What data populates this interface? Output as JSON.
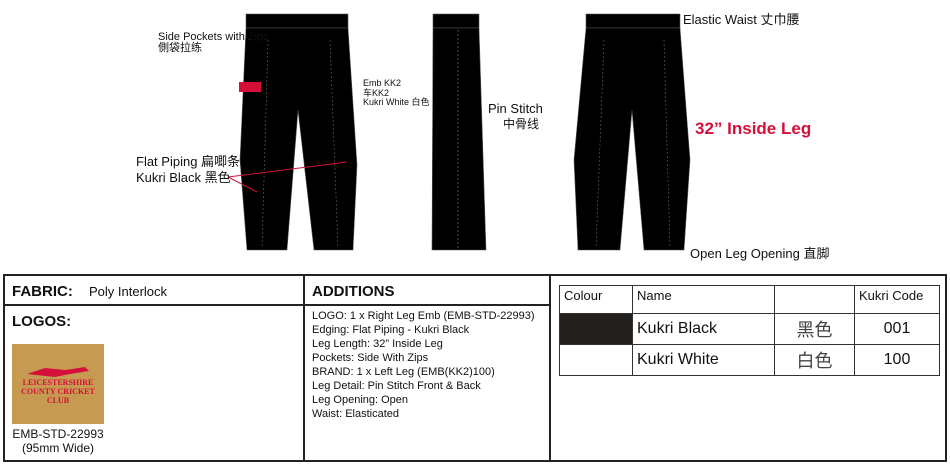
{
  "drawing": {
    "side_pockets": "Side Pockets with Zips",
    "side_pockets_cn": "側袋拉练",
    "emb": "Emb KK2",
    "emb_cn": "车KK2",
    "emb_colour": "Kukri White 白色",
    "flat_piping": "Flat Piping 扁唧条",
    "flat_piping_colour": "Kukri Black 黑色",
    "pin_stitch": "Pin Stitch",
    "pin_stitch_cn": "中骨线",
    "elastic_waist": "Elastic Waist 丈巾腰",
    "inside_leg": "32” Inside Leg",
    "open_leg": "Open Leg Opening 直脚",
    "accent": "#d4103a"
  },
  "fabric": {
    "label": "FABRIC:",
    "value": "Poly Interlock"
  },
  "logos": {
    "label": "LOGOS:",
    "logo_text": "LEICESTERSHIRE COUNTY CRICKET CLUB",
    "code": "EMB-STD-22993",
    "size": "(95mm Wide)"
  },
  "additions": {
    "label": "ADDITIONS",
    "items": [
      "LOGO: 1 x Right Leg Emb (EMB-STD-22993)",
      "Edging: Flat Piping - Kukri Black",
      "Leg Length: 32” Inside Leg",
      "Pockets: Side With Zips",
      "BRAND: 1 x Left Leg (EMB(KK2)100)",
      "Leg Detail: Pin Stitch Front & Back",
      "Leg Opening: Open",
      "Waist: Elasticated"
    ]
  },
  "colours": {
    "headers": [
      "Colour",
      "Name",
      "",
      "Kukri Code"
    ],
    "rows": [
      {
        "swatch": "#231f1c",
        "name": "Kukri Black",
        "cn": "黑色",
        "code": "001"
      },
      {
        "swatch": "#ffffff",
        "name": "Kukri White",
        "cn": "白色",
        "code": "100"
      }
    ]
  }
}
